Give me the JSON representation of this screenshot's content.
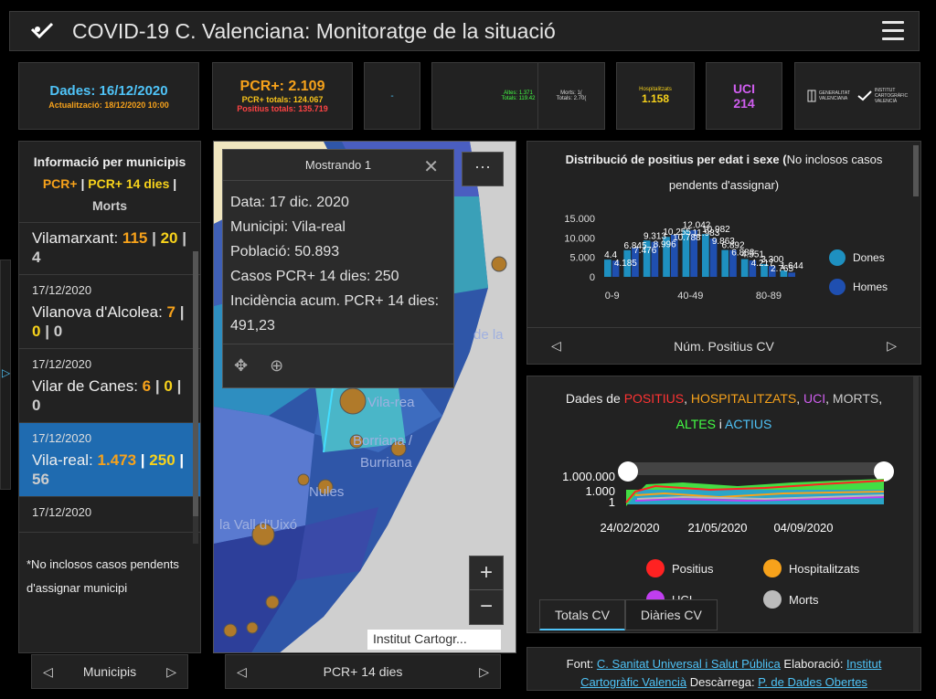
{
  "header": {
    "title": "COVID-19 C. Valenciana: Monitoratge de la situació"
  },
  "cards": {
    "dates": {
      "line1": "Dades: 16/12/2020",
      "line2": "Actualització: 18/12/2020 10:00"
    },
    "pcr": {
      "line1": "PCR+: 2.109",
      "line2": "PCR+ totals: 124.067",
      "line3": "Positius totals: 135.719"
    },
    "blank": {
      "text": "-"
    },
    "altes": {
      "line1": "Altes: 1.371",
      "line2": "Totals: 119.42"
    },
    "morts": {
      "line1": "Morts: 1(",
      "line2": "Totals: 2.70("
    },
    "hosp": {
      "line1": "Hospitalitzats",
      "line2": "1.158"
    },
    "uci": {
      "line1": "UCI",
      "line2": "214"
    },
    "logos": {
      "gva1": "GENERALITAT",
      "gva2": "VALENCIANA",
      "icv1": "INSTITUT",
      "icv2": "CARTOGRÀFIC",
      "icv3": "VALENCIÀ"
    }
  },
  "left": {
    "title": "Informació per municipis",
    "sub1": "PCR+",
    "sep": "|",
    "sub2": "PCR+ 14 dies",
    "sub3": "Morts",
    "items": [
      {
        "date": "",
        "name": "Vilamarxant:",
        "a": "115",
        "b": "20",
        "c": "4"
      },
      {
        "date": "17/12/2020",
        "name": "Vilanova d'Alcolea:",
        "a": "7",
        "b": "0",
        "c": "0"
      },
      {
        "date": "17/12/2020",
        "name": "Vilar de Canes:",
        "a": "6",
        "b": "0",
        "c": "0"
      },
      {
        "date": "17/12/2020",
        "name": "Vila-real:",
        "a": "1.473",
        "b": "250",
        "c": "56"
      },
      {
        "date": "17/12/2020",
        "name": "",
        "a": "",
        "b": "",
        "c": ""
      }
    ],
    "note": "*No inclosos casos pendents d'assignar municipi",
    "pager": "Municipis"
  },
  "map": {
    "popup_title": "Mostrando 1",
    "lines": [
      "Data: 17 dic. 2020",
      "Municipi: Vila-real",
      "Població: 50.893",
      "Casos PCR+ 14 dies: 250",
      "Incidència acum. PCR+ 14 dies: 491,23"
    ],
    "labels": {
      "burriana1": "Borriana /",
      "burriana2": "Burriana",
      "nules": "Nules",
      "vall": "la Vall d'Uixó",
      "vilareal": "Vila-rea",
      "dela": "de la"
    },
    "attribution": "Institut Cartogr...",
    "pager": "PCR+ 14 dies",
    "more": "···",
    "zoom_in": "+",
    "zoom_out": "−"
  },
  "chart1": {
    "title_bold": "Distribució de positius per edat i sexe (",
    "title_normal": "No inclosos casos pendents d'assignar)",
    "pager": "Núm. Positius CV",
    "legend": [
      "Dones",
      "Homes"
    ],
    "colors": {
      "dones": "#1e90c0",
      "homes": "#1f4fb0"
    }
  },
  "chart_data": [
    {
      "type": "bar",
      "title": "Distribució de positius per edat i sexe",
      "categories": [
        "0-9",
        "",
        "",
        "",
        "40-49",
        "",
        "",
        "",
        "80-89",
        ""
      ],
      "ylim": [
        0,
        15000
      ],
      "yticks": [
        "15.000",
        "10.000",
        "5.000",
        "0"
      ],
      "xticks": [
        "0-9",
        "40-49",
        "80-89"
      ],
      "series": [
        {
          "name": "Dones",
          "values": [
            4420,
            6845,
            9313,
            10255,
            12042,
            10982,
            6892,
            4551,
            3300,
            1644
          ]
        },
        {
          "name": "Homes",
          "values": [
            4185,
            7476,
            8996,
            10788,
            11983,
            9863,
            6883,
            4217,
            2765,
            1100
          ]
        }
      ],
      "data_labels": [
        "4.4",
        "4.185",
        "6.845",
        "7.476",
        "9.313",
        "8.996",
        "10.255",
        "10.788",
        "12.042",
        "11.983",
        "10.982",
        "9.863",
        "6.892",
        "6.883",
        "4.551",
        "4.217",
        "3.300",
        "2.765",
        "1.644"
      ]
    },
    {
      "type": "line",
      "title": "Dades de POSITIUS, HOSPITALITZATS, UCI, MORTS, ALTES i ACTIUS",
      "yticks": [
        "1.000.000",
        "1.000",
        "1"
      ],
      "xticks": [
        "24/02/2020",
        "21/05/2020",
        "04/09/2020"
      ],
      "series": [
        {
          "name": "Positius"
        },
        {
          "name": "Hospitalitzats"
        },
        {
          "name": "UCI"
        },
        {
          "name": "Morts"
        },
        {
          "name": "Altes"
        },
        {
          "name": "Actius"
        }
      ]
    }
  ],
  "chart2": {
    "t_pre": "Dades de ",
    "t_pos": "POSITIUS",
    "t_c1": ", ",
    "t_hos": "HOSPITALITZATS",
    "t_c2": ", ",
    "t_uci": "UCI",
    "t_c3": ", ",
    "t_mor": "MORTS",
    "t_c4": ",",
    "t_alt": "ALTES",
    "t_i": " i ",
    "t_act": "ACTIUS",
    "legend": [
      "Positius",
      "Hospitalitzats",
      "UCI",
      "Morts"
    ],
    "tabs": [
      "Totals CV",
      "Diàries CV"
    ]
  },
  "footer": {
    "f1": "Font: ",
    "l1": "C. Sanitat Universal i Salut Pública",
    "f2": " Elaboració: ",
    "l2": "Institut Cartogràfic Valencià",
    "f3": " Descàrrega: ",
    "l3": "P. de Dades Obertes"
  }
}
